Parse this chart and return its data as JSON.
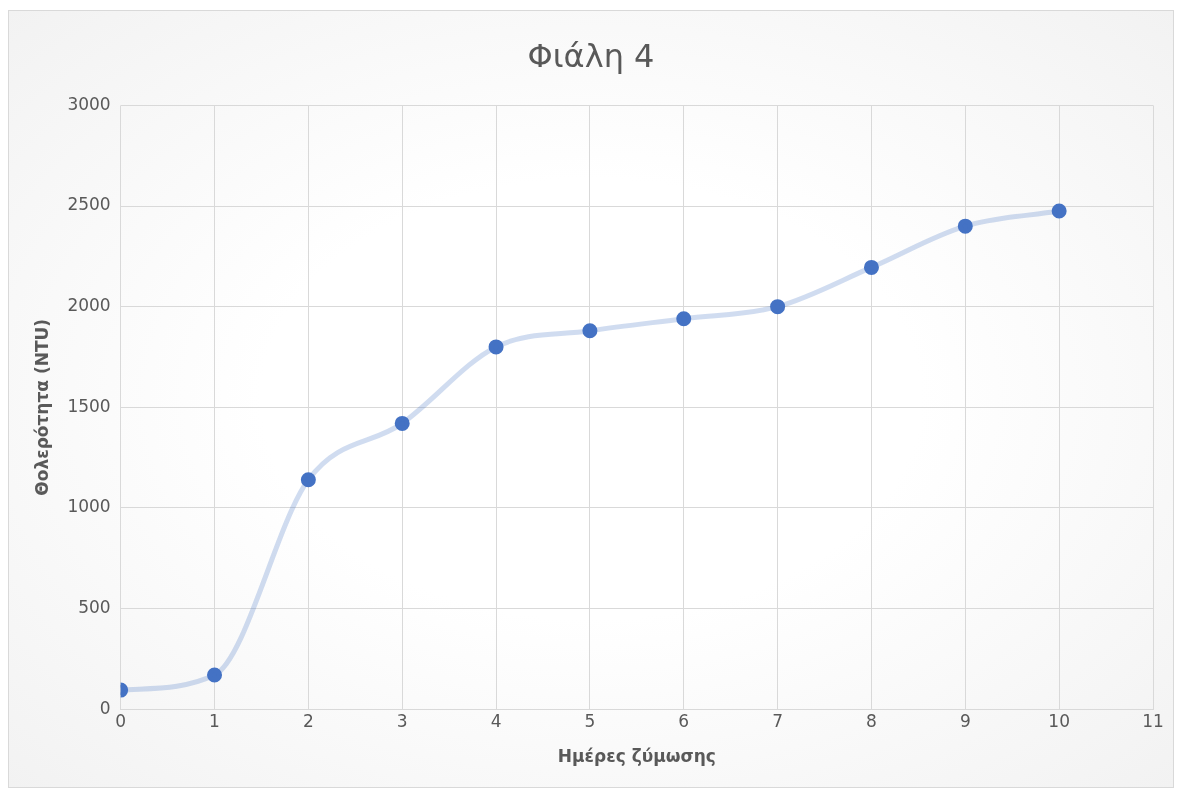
{
  "chart_data": {
    "type": "line",
    "title": "Φιάλη 4",
    "xlabel": "Ημέρες ζύμωσης",
    "ylabel": "Θολερότητα (NTU)",
    "x": [
      0,
      1,
      2,
      3,
      4,
      5,
      6,
      7,
      8,
      9,
      10
    ],
    "series": [
      {
        "color": "#4472c4",
        "values": [
          95,
          170,
          1140,
          1420,
          1800,
          1880,
          1940,
          2000,
          2195,
          2400,
          2475
        ]
      }
    ],
    "xlim": [
      0,
      11
    ],
    "xticks": [
      0,
      1,
      2,
      3,
      4,
      5,
      6,
      7,
      8,
      9,
      10,
      11
    ],
    "ylim": [
      0,
      3000
    ],
    "yticks": [
      0,
      500,
      1000,
      1500,
      2000,
      2500,
      3000
    ],
    "grid": true,
    "legend": false,
    "marker": "circle",
    "line_style": "solid"
  }
}
